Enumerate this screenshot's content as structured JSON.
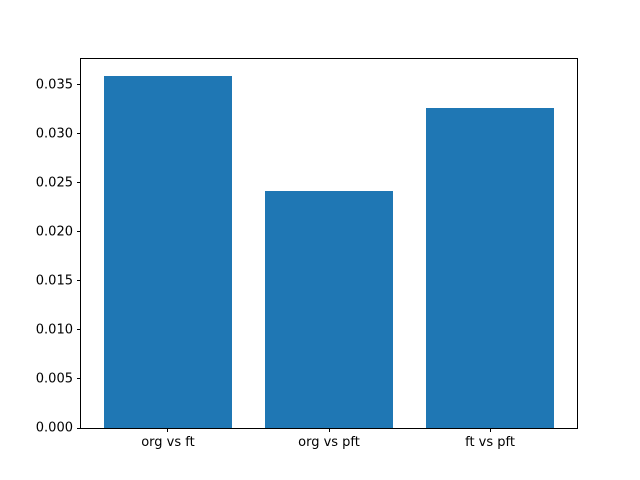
{
  "chart_data": {
    "type": "bar",
    "categories": [
      "org vs ft",
      "org vs pft",
      "ft vs pft"
    ],
    "values": [
      0.0359,
      0.0241,
      0.0326
    ],
    "title": "",
    "xlabel": "",
    "ylabel": "",
    "ylim": [
      0,
      0.0376
    ],
    "yticks": [
      0.0,
      0.005,
      0.01,
      0.015,
      0.02,
      0.025,
      0.03,
      0.035
    ],
    "ytick_decimals": 3,
    "bar_color": "#1f77b4",
    "bar_width_fraction": 0.8,
    "x_margin_fraction": 0.05,
    "grid": false,
    "legend": "none",
    "background": "#ffffff"
  }
}
